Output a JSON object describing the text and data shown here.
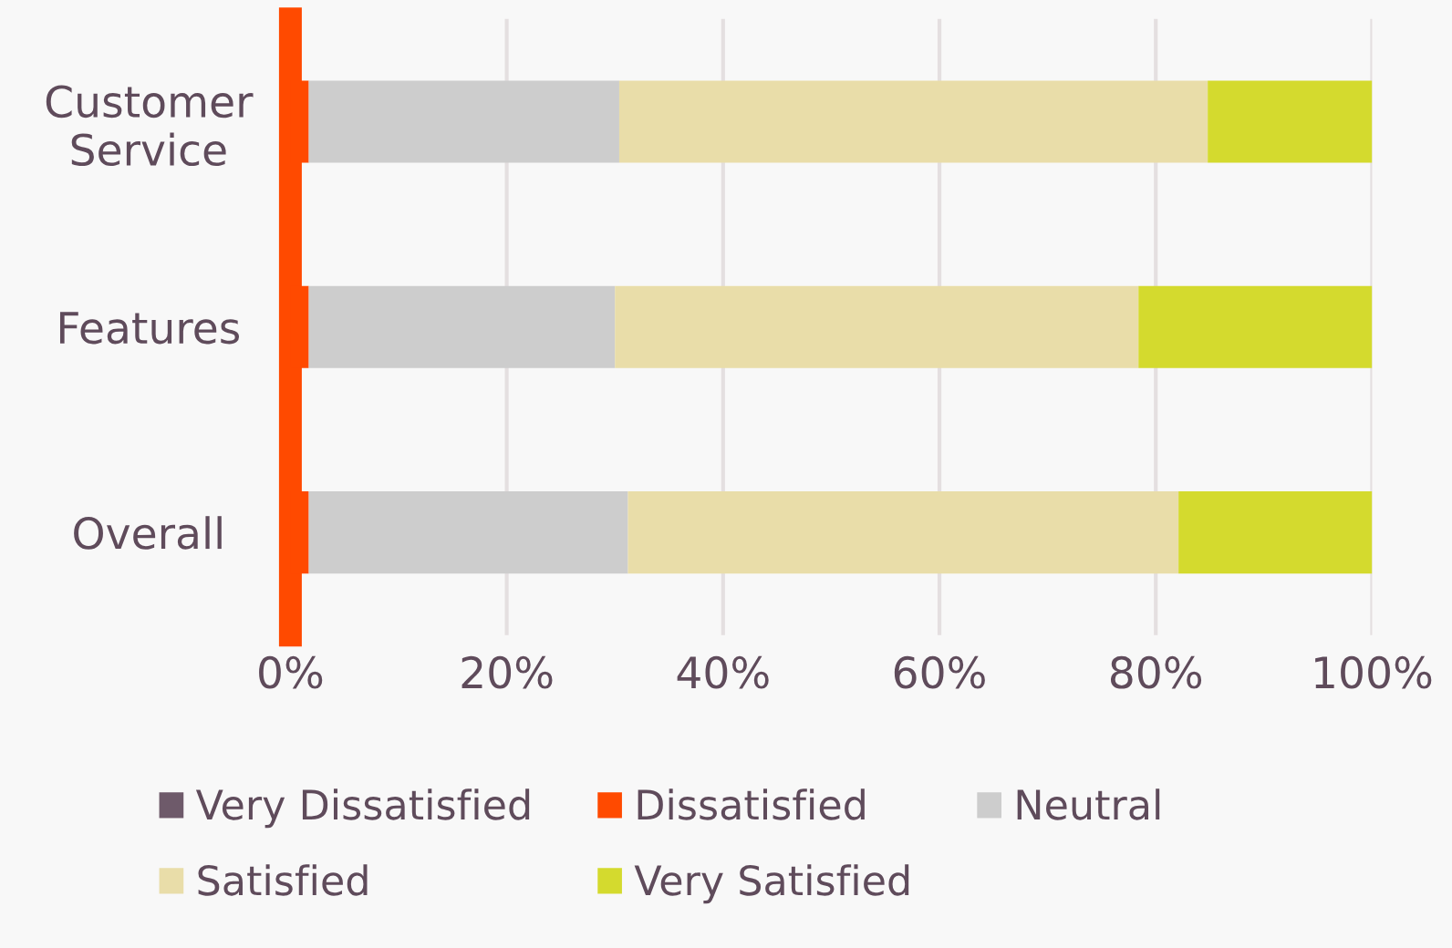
{
  "chart_data": {
    "type": "bar",
    "orientation": "horizontal",
    "stacked": true,
    "categories": [
      "Customer\nService",
      "Features",
      "Overall"
    ],
    "series": [
      {
        "name": "Very Dissatisfied",
        "color": "#6e5a6a",
        "values": [
          0,
          0,
          0
        ]
      },
      {
        "name": "Dissatisfied",
        "color": "#ff4a00",
        "values": [
          1.7,
          1.7,
          1.7
        ]
      },
      {
        "name": "Neutral",
        "color": "#cdcdcd",
        "values": [
          28.7,
          28.3,
          29.5
        ]
      },
      {
        "name": "Satisfied",
        "color": "#e9dda9",
        "values": [
          54.4,
          48.4,
          50.9
        ]
      },
      {
        "name": "Very Satisfied",
        "color": "#d4da2e",
        "values": [
          15.2,
          21.6,
          17.9
        ]
      }
    ],
    "xlim": [
      0,
      100
    ],
    "xticks": [
      {
        "value": 0,
        "label": "0%"
      },
      {
        "value": 20,
        "label": "20%"
      },
      {
        "value": 40,
        "label": "40%"
      },
      {
        "value": 60,
        "label": "60%"
      },
      {
        "value": 80,
        "label": "80%"
      },
      {
        "value": 100,
        "label": "100%"
      }
    ],
    "grid": "x",
    "legend": "bottom"
  }
}
